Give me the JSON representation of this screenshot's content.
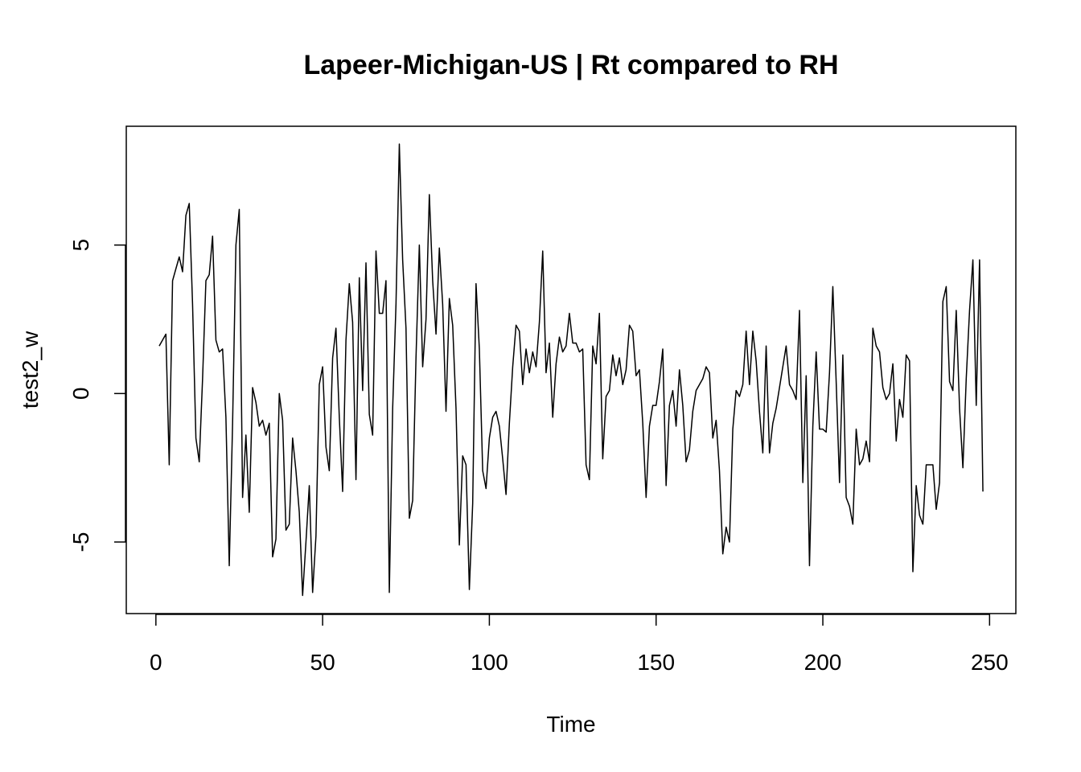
{
  "chart_data": {
    "type": "line",
    "title": "Lapeer-Michigan-US | Rt compared to RH",
    "xlabel": "Time",
    "ylabel": "test2_w",
    "x": [
      1,
      2,
      3,
      4,
      5,
      6,
      7,
      8,
      9,
      10,
      11,
      12,
      13,
      14,
      15,
      16,
      17,
      18,
      19,
      20,
      21,
      22,
      23,
      24,
      25,
      26,
      27,
      28,
      29,
      30,
      31,
      32,
      33,
      34,
      35,
      36,
      37,
      38,
      39,
      40,
      41,
      42,
      43,
      44,
      45,
      46,
      47,
      48,
      49,
      50,
      51,
      52,
      53,
      54,
      55,
      56,
      57,
      58,
      59,
      60,
      61,
      62,
      63,
      64,
      65,
      66,
      67,
      68,
      69,
      70,
      71,
      72,
      73,
      74,
      75,
      76,
      77,
      78,
      79,
      80,
      81,
      82,
      83,
      84,
      85,
      86,
      87,
      88,
      89,
      90,
      91,
      92,
      93,
      94,
      95,
      96,
      97,
      98,
      99,
      100,
      101,
      102,
      103,
      104,
      105,
      106,
      107,
      108,
      109,
      110,
      111,
      112,
      113,
      114,
      115,
      116,
      117,
      118,
      119,
      120,
      121,
      122,
      123,
      124,
      125,
      126,
      127,
      128,
      129,
      130,
      131,
      132,
      133,
      134,
      135,
      136,
      137,
      138,
      139,
      140,
      141,
      142,
      143,
      144,
      145,
      146,
      147,
      148,
      149,
      150,
      151,
      152,
      153,
      154,
      155,
      156,
      157,
      158,
      159,
      160,
      161,
      162,
      163,
      164,
      165,
      166,
      167,
      168,
      169,
      170,
      171,
      172,
      173,
      174,
      175,
      176,
      177,
      178,
      179,
      180,
      181,
      182,
      183,
      184,
      185,
      186,
      187,
      188,
      189,
      190,
      191,
      192,
      193,
      194,
      195,
      196,
      197,
      198,
      199,
      200,
      201,
      202,
      203,
      204,
      205,
      206,
      207,
      208,
      209,
      210,
      211,
      212,
      213,
      214,
      215,
      216,
      217,
      218,
      219,
      220,
      221,
      222,
      223,
      224,
      225,
      226,
      227,
      228,
      229,
      230,
      231,
      232,
      233,
      234,
      235,
      236,
      237,
      238,
      239,
      240,
      241,
      242,
      243,
      244,
      245,
      246,
      247,
      248
    ],
    "values": [
      1.6,
      1.8,
      2.0,
      -2.4,
      3.8,
      4.2,
      4.6,
      4.1,
      6.0,
      6.4,
      3.0,
      -1.5,
      -2.3,
      0.5,
      3.8,
      4.0,
      5.3,
      1.8,
      1.4,
      1.5,
      -0.8,
      -5.8,
      -1.0,
      5.0,
      6.2,
      -3.5,
      -1.4,
      -4.0,
      0.2,
      -0.3,
      -1.1,
      -0.9,
      -1.4,
      -1.0,
      -5.5,
      -4.9,
      0.0,
      -0.9,
      -4.6,
      -4.4,
      -1.5,
      -2.6,
      -4.0,
      -6.8,
      -5.0,
      -3.1,
      -6.7,
      -4.8,
      0.3,
      0.9,
      -1.8,
      -2.6,
      1.2,
      2.2,
      -0.8,
      -3.3,
      1.8,
      3.7,
      2.4,
      -2.9,
      3.9,
      0.1,
      4.4,
      -0.7,
      -1.4,
      4.8,
      2.7,
      2.7,
      3.8,
      -6.7,
      -0.5,
      3.0,
      8.4,
      4.5,
      2.2,
      -4.2,
      -3.6,
      1.2,
      5.0,
      0.9,
      2.5,
      6.7,
      3.8,
      2.0,
      4.9,
      3.0,
      -0.6,
      3.2,
      2.3,
      -0.5,
      -5.1,
      -2.1,
      -2.4,
      -6.6,
      -3.7,
      3.7,
      1.5,
      -2.6,
      -3.2,
      -1.5,
      -0.8,
      -0.6,
      -1.1,
      -2.2,
      -3.4,
      -1.0,
      0.9,
      2.3,
      2.1,
      0.3,
      1.5,
      0.7,
      1.4,
      0.9,
      2.4,
      4.8,
      0.7,
      1.7,
      -0.8,
      1.0,
      1.9,
      1.4,
      1.6,
      2.7,
      1.7,
      1.7,
      1.4,
      1.5,
      -2.4,
      -2.9,
      1.6,
      1.0,
      2.7,
      -2.2,
      -0.1,
      0.1,
      1.3,
      0.6,
      1.2,
      0.3,
      0.8,
      2.3,
      2.1,
      0.6,
      0.8,
      -1.0,
      -3.5,
      -1.1,
      -0.4,
      -0.4,
      0.4,
      1.5,
      -3.1,
      -0.4,
      0.1,
      -1.1,
      0.8,
      -0.4,
      -2.3,
      -1.9,
      -0.6,
      0.1,
      0.3,
      0.5,
      0.9,
      0.7,
      -1.5,
      -0.9,
      -2.6,
      -5.4,
      -4.5,
      -5.0,
      -1.2,
      0.1,
      -0.1,
      0.3,
      2.1,
      0.3,
      2.1,
      1.1,
      -0.6,
      -2.0,
      1.6,
      -2.0,
      -1.0,
      -0.5,
      0.2,
      0.9,
      1.6,
      0.3,
      0.1,
      -0.2,
      2.8,
      -3.0,
      0.6,
      -5.8,
      -1.1,
      1.4,
      -1.2,
      -1.2,
      -1.3,
      0.7,
      3.6,
      0.4,
      -3.0,
      1.3,
      -3.5,
      -3.8,
      -4.4,
      -1.2,
      -2.4,
      -2.2,
      -1.6,
      -2.3,
      2.2,
      1.6,
      1.4,
      0.2,
      -0.2,
      0.0,
      1.0,
      -1.6,
      -0.2,
      -0.8,
      1.3,
      1.1,
      -6.0,
      -3.1,
      -4.1,
      -4.4,
      -2.4,
      -2.4,
      -2.4,
      -3.9,
      -3.0,
      3.1,
      3.6,
      0.4,
      0.1,
      2.8,
      -0.5,
      -2.5,
      0.5,
      2.8,
      4.5,
      -0.4,
      4.5,
      -3.3
    ],
    "color": "#000000",
    "xlim": [
      -8.88,
      257.88
    ],
    "xticks": [
      0,
      50,
      100,
      150,
      200,
      250
    ],
    "ylim": [
      -7.41,
      9.0
    ],
    "yticks": [
      -5,
      0,
      5
    ]
  }
}
